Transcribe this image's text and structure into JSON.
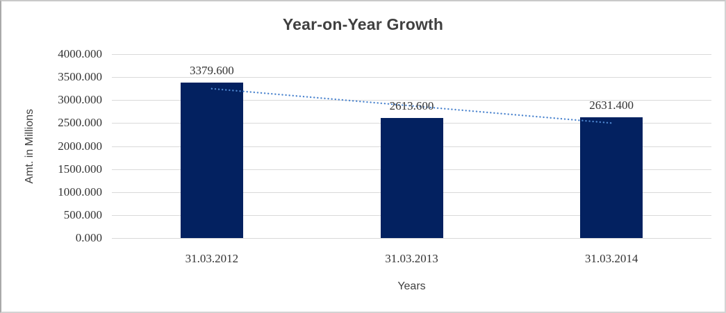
{
  "chart_data": {
    "type": "bar",
    "title": "Year-on-Year Growth",
    "xlabel": "Years",
    "ylabel": "Amt. in Millions",
    "categories": [
      "31.03.2012",
      "31.03.2013",
      "31.03.2014"
    ],
    "values": [
      3379.6,
      2613.6,
      2631.4
    ],
    "data_labels": [
      "3379.600",
      "2613.600",
      "2631.400"
    ],
    "yticks": [
      "4000.000",
      "3500.000",
      "3000.000",
      "2500.000",
      "2000.000",
      "1500.000",
      "1000.000",
      "500.000",
      "0.000"
    ],
    "ylim": [
      0,
      4000
    ],
    "ytick_step": 500,
    "grid": true,
    "legend": "none",
    "trendline": {
      "type": "linear",
      "style": "dotted"
    },
    "colors": {
      "bar": "#032160",
      "trendline": "#4e86cf",
      "gridline": "#d9d9d9",
      "title_text": "#404040",
      "label_text": "#333333"
    }
  }
}
